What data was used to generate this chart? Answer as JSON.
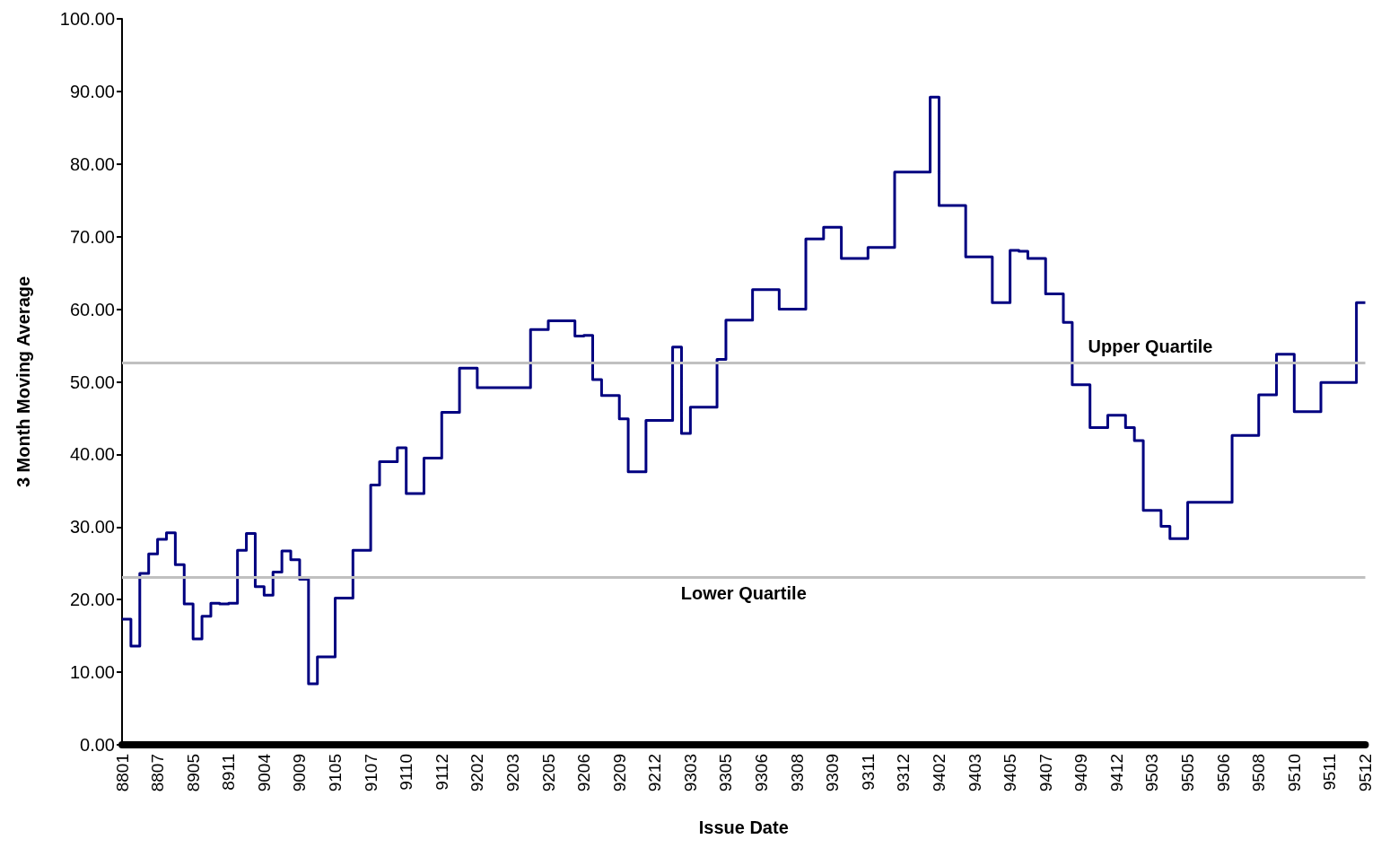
{
  "chart_data": {
    "type": "step",
    "xlabel": "Issue Date",
    "ylabel": "3 Month Moving Average",
    "categories": [
      "8801",
      null,
      null,
      null,
      "8807",
      null,
      null,
      null,
      "8905",
      null,
      null,
      null,
      "8911",
      null,
      null,
      null,
      "9004",
      null,
      null,
      null,
      "9009",
      null,
      null,
      null,
      "9105",
      null,
      null,
      null,
      "9107",
      null,
      null,
      null,
      "9110",
      null,
      null,
      null,
      "9112",
      null,
      null,
      null,
      "9202",
      null,
      null,
      null,
      "9203",
      null,
      null,
      null,
      "9205",
      null,
      null,
      null,
      "9206",
      null,
      null,
      null,
      "9209",
      null,
      null,
      null,
      "9212",
      null,
      null,
      null,
      "9303",
      null,
      null,
      null,
      "9305",
      null,
      null,
      null,
      "9306",
      null,
      null,
      null,
      "9308",
      null,
      null,
      null,
      "9309",
      null,
      null,
      null,
      "9311",
      null,
      null,
      null,
      "9312",
      null,
      null,
      null,
      "9402",
      null,
      null,
      null,
      "9403",
      null,
      null,
      null,
      "9405",
      null,
      null,
      null,
      "9407",
      null,
      null,
      null,
      "9409",
      null,
      null,
      null,
      "9412",
      null,
      null,
      null,
      "9503",
      null,
      null,
      null,
      "9505",
      null,
      null,
      null,
      "9506",
      null,
      null,
      null,
      "9508",
      null,
      null,
      null,
      "9510",
      null,
      null,
      null,
      "9511",
      null,
      null,
      null,
      "9512"
    ],
    "series": [
      {
        "color": "#000080",
        "values": [
          17.3,
          13.6,
          23.6,
          26.3,
          28.3,
          29.2,
          24.8,
          19.4,
          14.6,
          17.7,
          19.5,
          19.4,
          19.5,
          26.8,
          29.1,
          21.8,
          20.6,
          23.8,
          26.7,
          25.5,
          22.8,
          8.4,
          12.1,
          12.1,
          20.2,
          20.2,
          26.8,
          26.8,
          35.8,
          39.0,
          39.0,
          40.9,
          34.6,
          34.6,
          39.5,
          39.5,
          45.8,
          45.8,
          51.9,
          51.9,
          49.2,
          49.2,
          49.2,
          49.2,
          49.2,
          49.2,
          57.2,
          57.2,
          58.4,
          58.4,
          58.4,
          56.3,
          56.4,
          50.3,
          48.1,
          48.1,
          44.9,
          37.6,
          37.6,
          44.7,
          44.7,
          44.7,
          54.8,
          42.9,
          46.5,
          46.5,
          46.5,
          53.1,
          58.5,
          58.5,
          58.5,
          62.7,
          62.7,
          62.7,
          60.0,
          60.0,
          60.0,
          69.7,
          69.7,
          71.3,
          71.3,
          67.0,
          67.0,
          67.0,
          68.5,
          68.5,
          68.5,
          78.9,
          78.9,
          78.9,
          78.9,
          89.2,
          74.3,
          74.3,
          74.3,
          67.2,
          67.2,
          67.2,
          60.9,
          60.9,
          68.1,
          68.0,
          67.0,
          67.0,
          62.1,
          62.1,
          58.2,
          49.6,
          49.6,
          43.7,
          43.7,
          45.4,
          45.4,
          43.7,
          41.9,
          32.3,
          32.3,
          30.1,
          28.4,
          28.4,
          33.4,
          33.4,
          33.4,
          33.4,
          33.4,
          42.6,
          42.6,
          42.6,
          48.2,
          48.2,
          53.8,
          53.8,
          45.9,
          45.9,
          45.9,
          49.9,
          49.9,
          49.9,
          49.9,
          60.9,
          60.9
        ]
      }
    ],
    "ylim": [
      0,
      100
    ],
    "yticks": [
      {
        "value": 0,
        "label": "0.00"
      },
      {
        "value": 10,
        "label": "10.00"
      },
      {
        "value": 20,
        "label": "20.00"
      },
      {
        "value": 30,
        "label": "30.00"
      },
      {
        "value": 40,
        "label": "40.00"
      },
      {
        "value": 50,
        "label": "50.00"
      },
      {
        "value": 60,
        "label": "60.00"
      },
      {
        "value": 70,
        "label": "70.00"
      },
      {
        "value": 80,
        "label": "80.00"
      },
      {
        "value": 90,
        "label": "90.00"
      },
      {
        "value": 100,
        "label": "100.00"
      }
    ],
    "ref_lines": [
      {
        "axis": "y",
        "value": 52.6,
        "label": "Upper Quartile",
        "color": "#c0c0c0"
      },
      {
        "axis": "y",
        "value": 23.1,
        "label": "Lower Quartile",
        "color": "#c0c0c0"
      }
    ],
    "grid": false,
    "marker": "none",
    "line_style": "solid"
  }
}
